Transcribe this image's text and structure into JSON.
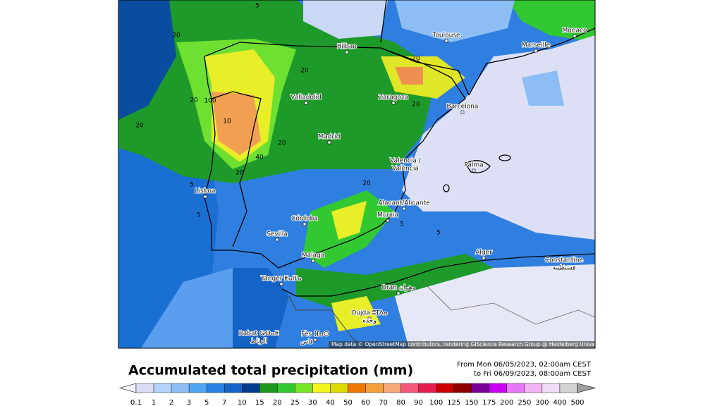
{
  "map": {
    "cities": [
      "Bilbao",
      "Toulouse",
      "Marseille",
      "Monaco",
      "Valladolid",
      "Zaragoza",
      "Barcelona",
      "Madrid",
      "Valencia /",
      "València",
      "Palma",
      "Lisboa",
      "Alacant/Alicante",
      "Córdoba",
      "Murcia",
      "Sevilla",
      "Malaga",
      "Alger",
      "Constantine",
      "قسنطينة",
      "Tanger ⵟⴰⵏⵊⴰ",
      "Oran وهران",
      "Oujda ⵓⵊⴷⴰ",
      "وجدة",
      "Rabat ⵕⴱⴰⵟ",
      "الرباط",
      "Fès ⴼⴰⵙ",
      "فاس"
    ],
    "contour_labels": [
      "20",
      "20",
      "20",
      "20",
      "20",
      "20",
      "20",
      "20",
      "20",
      "5",
      "5",
      "5",
      "5",
      "5",
      "10",
      "40",
      "100"
    ],
    "attribution": "Map data © OpenStreetMap contributors, rendering GIScience Research Group @ Heidelberg University"
  },
  "title": "Accumulated total precipitation (mm)",
  "period": {
    "from": "From Mon 06/05/2023, 02:00am CEST",
    "to": "to Fri 06/09/2023, 08:00am CEST"
  },
  "legend": {
    "ticks": [
      0.1,
      1,
      2,
      3,
      5,
      7,
      10,
      15,
      20,
      25,
      30,
      40,
      50,
      60,
      70,
      80,
      90,
      100,
      125,
      150,
      175,
      200,
      250,
      300,
      400,
      500
    ],
    "under_color": "#f2f2fa",
    "over_color": "#a0a0a0",
    "colors": [
      "#dcdcf5",
      "#b4d2fa",
      "#8cbef5",
      "#50a5f0",
      "#2882e6",
      "#1464c8",
      "#003c8c",
      "#1e961e",
      "#32c832",
      "#78e628",
      "#f5f51e",
      "#dcdc00",
      "#f07800",
      "#f5a03c",
      "#f5aa78",
      "#f05a78",
      "#e61e50",
      "#c80000",
      "#8c0000",
      "#780096",
      "#c800f0",
      "#e678f5",
      "#f0b4f0",
      "#f0dcf5",
      "#d2d2d2"
    ]
  }
}
